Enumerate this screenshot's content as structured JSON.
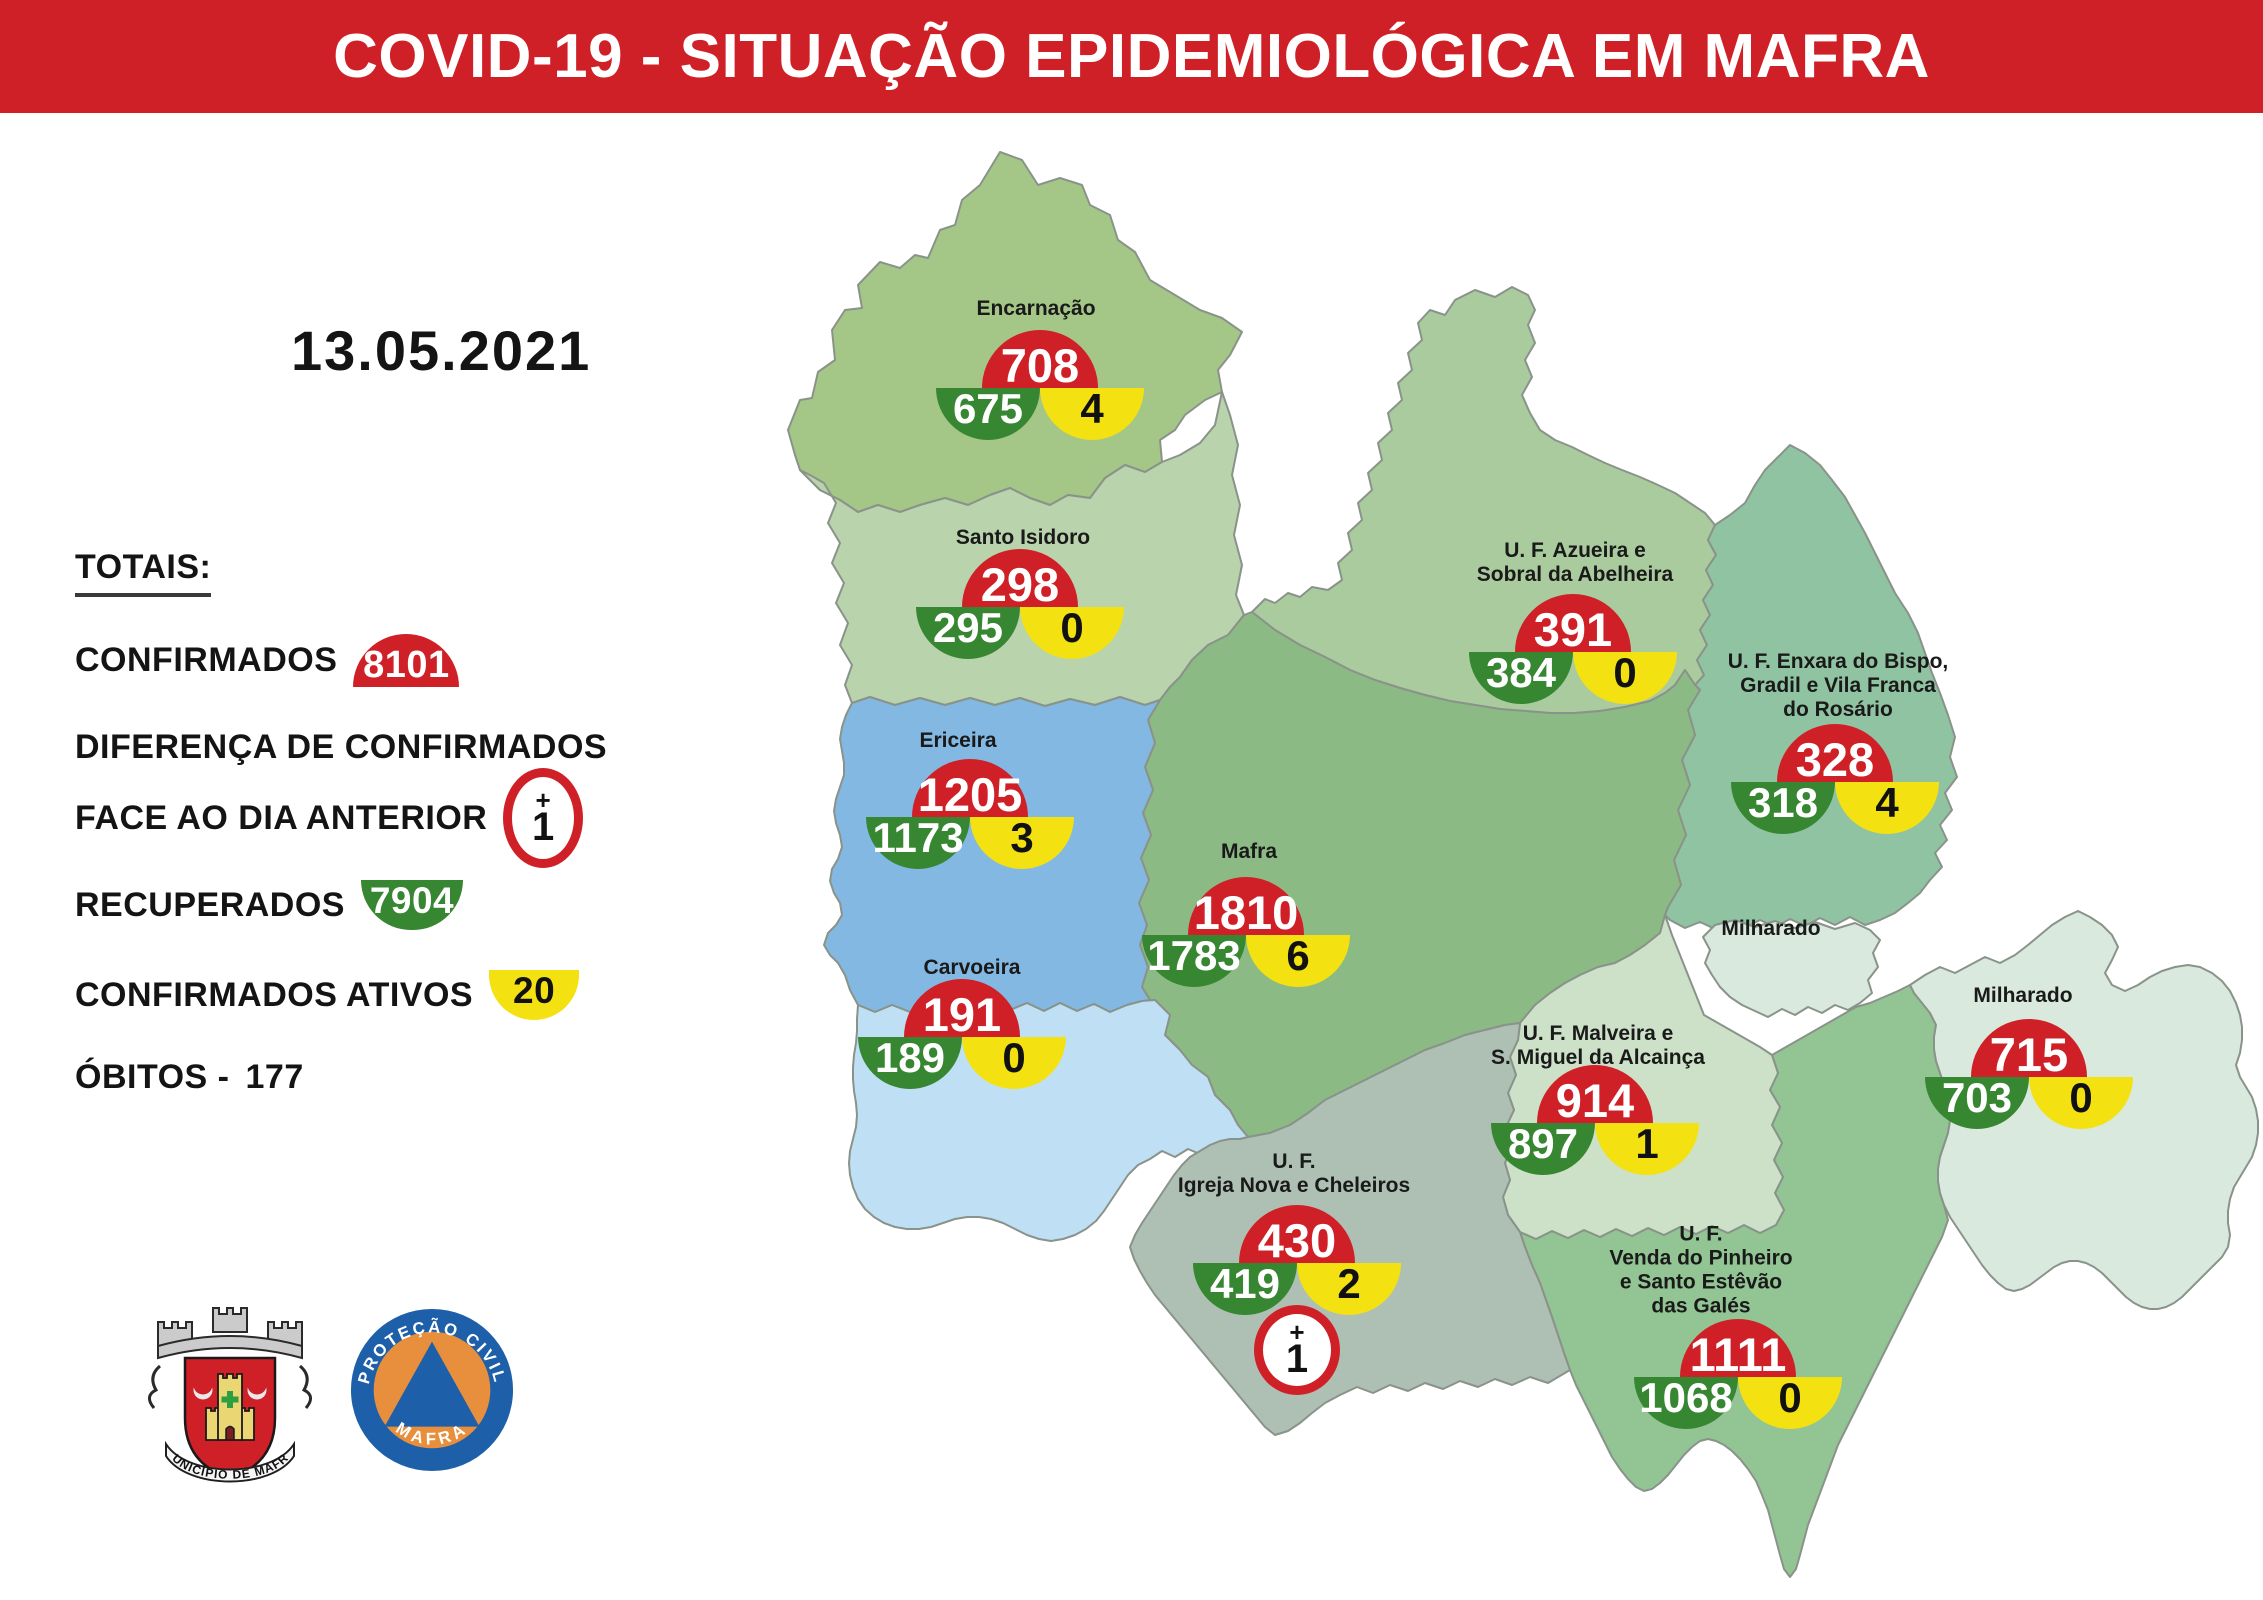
{
  "header": {
    "title": "COVID-19 - SITUAÇÃO EPIDEMIOLÓGICA EM MAFRA"
  },
  "date": "13.05.2021",
  "totals": {
    "heading": "TOTAIS:",
    "confirmed_label": "CONFIRMADOS",
    "confirmed": "8101",
    "diff_label_line1": "DIFERENÇA DE CONFIRMADOS",
    "diff_label_line2": "FACE AO DIA ANTERIOR",
    "diff": {
      "plus": "+",
      "value": "1"
    },
    "recovered_label": "RECUPERADOS",
    "recovered": "7904",
    "active_label": "CONFIRMADOS ATIVOS",
    "active": "20",
    "deaths_label": "ÓBITOS -",
    "deaths": "177"
  },
  "colors": {
    "header_red": "#d02027",
    "confirmed_red": "#d02027",
    "recovered_green": "#378631",
    "active_yellow": "#f4e112"
  },
  "logos": {
    "municipality_ribbon": "MUNICÍPIO DE MAFRA",
    "civil_protection_top": "PROTEÇÃO CIVIL",
    "civil_protection_bottom": "MAFRA"
  },
  "map": {
    "regions": [
      {
        "id": "encarnacao",
        "name": "Encarnação",
        "confirmed": "708",
        "recovered": "675",
        "active": "4",
        "color": "#a4c787"
      },
      {
        "id": "santo-isidoro",
        "name": "Santo Isidoro",
        "confirmed": "298",
        "recovered": "295",
        "active": "0",
        "color": "#b9d3ad"
      },
      {
        "id": "ericeira",
        "name": "Ericeira",
        "confirmed": "1205",
        "recovered": "1173",
        "active": "3",
        "color": "#82b8e2"
      },
      {
        "id": "carvoeira",
        "name": "Carvoeira",
        "confirmed": "191",
        "recovered": "189",
        "active": "0",
        "color": "#bfe0f4"
      },
      {
        "id": "mafra",
        "name": "Mafra",
        "confirmed": "1810",
        "recovered": "1783",
        "active": "6",
        "color": "#8cba84"
      },
      {
        "id": "azueira",
        "name": "U. F. Azueira e\nSobral da Abelheira",
        "confirmed": "391",
        "recovered": "384",
        "active": "0",
        "color": "#aacb9e"
      },
      {
        "id": "enxara",
        "name": "U. F. Enxara do Bispo,\nGradil e Vila Franca\ndo Rosário",
        "confirmed": "328",
        "recovered": "318",
        "active": "4",
        "color": "#90c3a2"
      },
      {
        "id": "malveira",
        "name": "U. F. Malveira e\nS. Miguel da Alcainça",
        "confirmed": "914",
        "recovered": "897",
        "active": "1",
        "color": "#cde1c8"
      },
      {
        "id": "milharado",
        "name": "Milharado",
        "exclave_label": "Milharado",
        "confirmed": "715",
        "recovered": "703",
        "active": "0",
        "color": "#d9e9dd"
      },
      {
        "id": "igreja",
        "name": "U. F.\nIgreja Nova e Cheleiros",
        "confirmed": "430",
        "recovered": "419",
        "active": "2",
        "color": "#aec0b3",
        "deaths_delta": {
          "plus": "+",
          "value": "1"
        }
      },
      {
        "id": "venda",
        "name": "U. F.\nVenda do Pinheiro\ne Santo Estêvão\ndas Galés",
        "confirmed": "1111",
        "recovered": "1068",
        "active": "0",
        "color": "#92c494"
      }
    ]
  }
}
